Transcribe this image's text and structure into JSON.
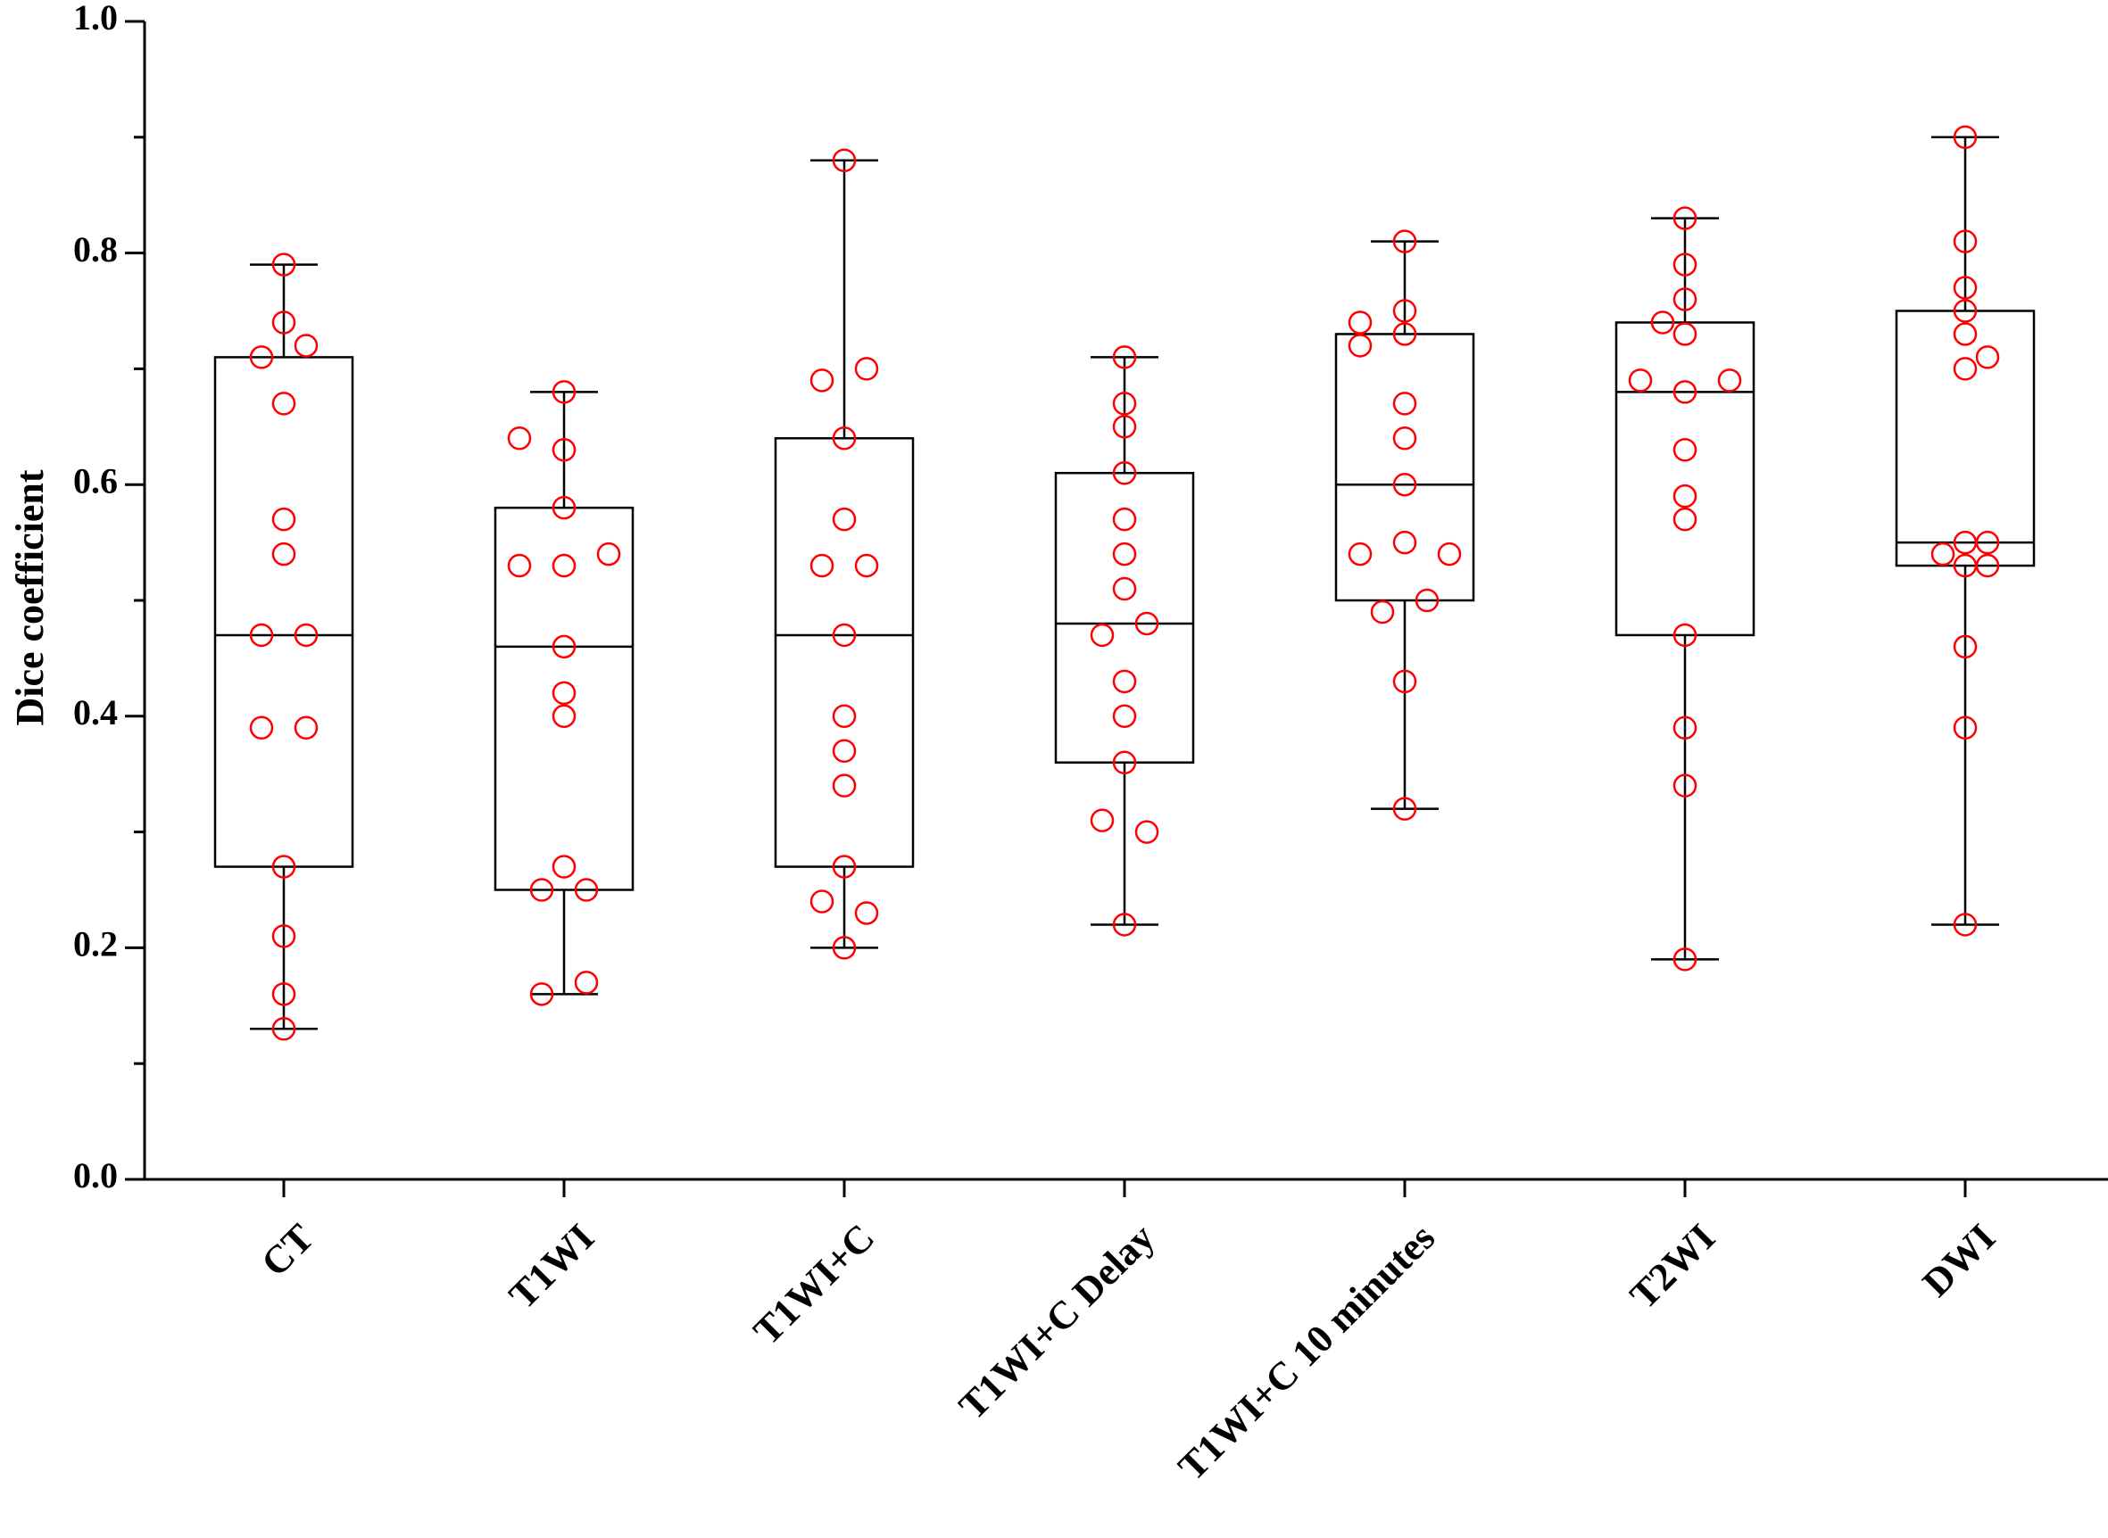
{
  "chart_data": {
    "type": "box",
    "xlabel": "",
    "ylabel": "Dice coefficient",
    "ylim": [
      0.0,
      1.0
    ],
    "yticks": [
      0.0,
      0.2,
      0.4,
      0.6,
      0.8,
      1.0
    ],
    "ytick_labels": [
      "0.0",
      "0.2",
      "0.4",
      "0.6",
      "0.8",
      "1.0"
    ],
    "grid": false,
    "box_color": "#000000",
    "point_color": "#ff0000",
    "categories": [
      "CT",
      "T1WI",
      "T1WI+C",
      "T1WI+C Delay",
      "T1WI+C 10 minutes",
      "T2WI",
      "DWI"
    ],
    "boxes": [
      {
        "min": 0.13,
        "q1": 0.27,
        "median": 0.47,
        "q3": 0.71,
        "max": 0.79
      },
      {
        "min": 0.16,
        "q1": 0.25,
        "median": 0.46,
        "q3": 0.58,
        "max": 0.68
      },
      {
        "min": 0.2,
        "q1": 0.27,
        "median": 0.47,
        "q3": 0.64,
        "max": 0.88
      },
      {
        "min": 0.22,
        "q1": 0.36,
        "median": 0.48,
        "q3": 0.61,
        "max": 0.71
      },
      {
        "min": 0.32,
        "q1": 0.5,
        "median": 0.6,
        "q3": 0.73,
        "max": 0.81
      },
      {
        "min": 0.19,
        "q1": 0.47,
        "median": 0.68,
        "q3": 0.74,
        "max": 0.83
      },
      {
        "min": 0.22,
        "q1": 0.53,
        "median": 0.55,
        "q3": 0.75,
        "max": 0.9
      }
    ],
    "points": [
      [
        [
          0,
          0.79
        ],
        [
          0,
          0.74
        ],
        [
          1,
          0.72
        ],
        [
          -1,
          0.71
        ],
        [
          0,
          0.67
        ],
        [
          0,
          0.57
        ],
        [
          0,
          0.54
        ],
        [
          -1,
          0.47
        ],
        [
          1,
          0.47
        ],
        [
          -1,
          0.39
        ],
        [
          1,
          0.39
        ],
        [
          0,
          0.27
        ],
        [
          0,
          0.21
        ],
        [
          0,
          0.16
        ],
        [
          0,
          0.13
        ]
      ],
      [
        [
          0,
          0.68
        ],
        [
          -2,
          0.64
        ],
        [
          0,
          0.63
        ],
        [
          0,
          0.58
        ],
        [
          -2,
          0.53
        ],
        [
          0,
          0.53
        ],
        [
          2,
          0.54
        ],
        [
          0,
          0.46
        ],
        [
          0,
          0.42
        ],
        [
          0,
          0.4
        ],
        [
          0,
          0.27
        ],
        [
          -1,
          0.25
        ],
        [
          1,
          0.25
        ],
        [
          1,
          0.17
        ],
        [
          -1,
          0.16
        ]
      ],
      [
        [
          0,
          0.88
        ],
        [
          1,
          0.7
        ],
        [
          -1,
          0.69
        ],
        [
          0,
          0.64
        ],
        [
          0,
          0.57
        ],
        [
          -1,
          0.53
        ],
        [
          1,
          0.53
        ],
        [
          0,
          0.47
        ],
        [
          0,
          0.4
        ],
        [
          0,
          0.37
        ],
        [
          0,
          0.34
        ],
        [
          0,
          0.27
        ],
        [
          -1,
          0.24
        ],
        [
          1,
          0.23
        ],
        [
          0,
          0.2
        ]
      ],
      [
        [
          0,
          0.71
        ],
        [
          0,
          0.67
        ],
        [
          0,
          0.65
        ],
        [
          0,
          0.61
        ],
        [
          0,
          0.57
        ],
        [
          0,
          0.54
        ],
        [
          0,
          0.51
        ],
        [
          -1,
          0.47
        ],
        [
          1,
          0.48
        ],
        [
          0,
          0.43
        ],
        [
          0,
          0.4
        ],
        [
          0,
          0.36
        ],
        [
          -1,
          0.31
        ],
        [
          1,
          0.3
        ],
        [
          0,
          0.22
        ]
      ],
      [
        [
          0,
          0.81
        ],
        [
          0,
          0.75
        ],
        [
          -2,
          0.74
        ],
        [
          0,
          0.73
        ],
        [
          -2,
          0.72
        ],
        [
          0,
          0.67
        ],
        [
          0,
          0.64
        ],
        [
          0,
          0.6
        ],
        [
          0,
          0.55
        ],
        [
          -2,
          0.54
        ],
        [
          2,
          0.54
        ],
        [
          1,
          0.5
        ],
        [
          -1,
          0.49
        ],
        [
          0,
          0.43
        ],
        [
          0,
          0.32
        ]
      ],
      [
        [
          0,
          0.83
        ],
        [
          0,
          0.79
        ],
        [
          0,
          0.76
        ],
        [
          -1,
          0.74
        ],
        [
          0,
          0.73
        ],
        [
          -2,
          0.69
        ],
        [
          2,
          0.69
        ],
        [
          0,
          0.68
        ],
        [
          0,
          0.63
        ],
        [
          0,
          0.59
        ],
        [
          0,
          0.57
        ],
        [
          0,
          0.47
        ],
        [
          0,
          0.39
        ],
        [
          0,
          0.34
        ],
        [
          0,
          0.19
        ]
      ],
      [
        [
          0,
          0.9
        ],
        [
          0,
          0.81
        ],
        [
          0,
          0.77
        ],
        [
          0,
          0.75
        ],
        [
          0,
          0.73
        ],
        [
          1,
          0.71
        ],
        [
          0,
          0.7
        ],
        [
          -1,
          0.54
        ],
        [
          0,
          0.55
        ],
        [
          1,
          0.55
        ],
        [
          0,
          0.53
        ],
        [
          1,
          0.53
        ],
        [
          0,
          0.46
        ],
        [
          0,
          0.39
        ],
        [
          0,
          0.22
        ]
      ]
    ]
  }
}
